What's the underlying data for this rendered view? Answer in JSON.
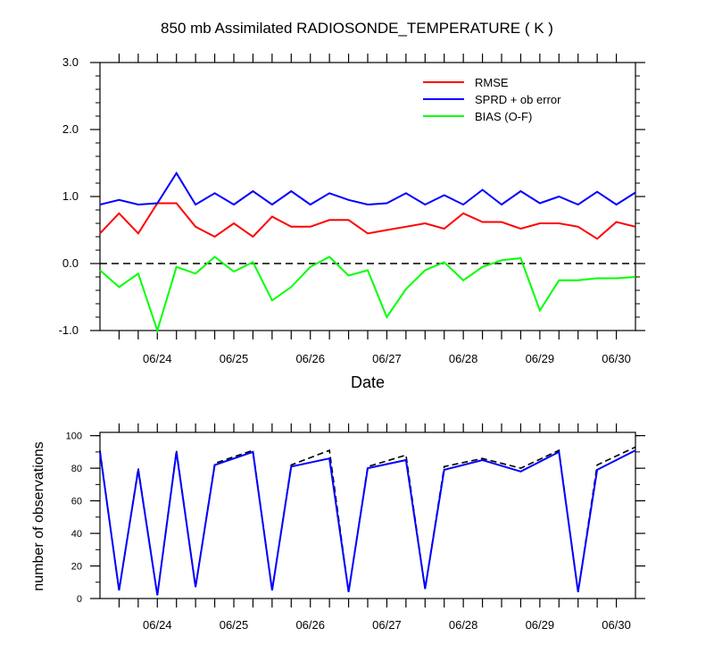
{
  "chart_data": [
    {
      "type": "line",
      "title": "850 mb Assimilated RADIOSONDE_TEMPERATURE ( K )",
      "xlabel": "Date",
      "ylabel": "",
      "xlim": [
        0,
        7
      ],
      "ylim": [
        -1.0,
        3.0
      ],
      "x_ticks": [
        0.75,
        1.75,
        2.75,
        3.75,
        4.75,
        5.75,
        6.75
      ],
      "x_tick_labels": [
        "06/24",
        "06/25",
        "06/26",
        "06/27",
        "06/28",
        "06/29",
        "06/30"
      ],
      "y_ticks": [
        -1.0,
        0.0,
        1.0,
        2.0,
        3.0
      ],
      "y_tick_labels": [
        "-1.0",
        "0.0",
        "1.0",
        "2.0",
        "3.0"
      ],
      "reference_line": {
        "y": 0.0,
        "style": "dashed"
      },
      "legend_position": "top-right",
      "series": [
        {
          "name": "RMSE",
          "color": "#ff0000",
          "points": [
            [
              0,
              0.45
            ],
            [
              0.25,
              0.75
            ],
            [
              0.5,
              0.45
            ],
            [
              0.75,
              0.9
            ],
            [
              1.0,
              0.9
            ],
            [
              1.25,
              0.55
            ],
            [
              1.5,
              0.4
            ],
            [
              1.75,
              0.6
            ],
            [
              2.0,
              0.4
            ],
            [
              2.25,
              0.7
            ],
            [
              2.5,
              0.55
            ],
            [
              2.75,
              0.55
            ],
            [
              3.0,
              0.65
            ],
            [
              3.25,
              0.65
            ],
            [
              3.5,
              0.45
            ],
            [
              3.75,
              0.5
            ],
            [
              4.0,
              0.55
            ],
            [
              4.25,
              0.6
            ],
            [
              4.5,
              0.52
            ],
            [
              4.75,
              0.75
            ],
            [
              5.0,
              0.62
            ],
            [
              5.25,
              0.62
            ],
            [
              5.5,
              0.52
            ],
            [
              5.75,
              0.6
            ],
            [
              6.0,
              0.6
            ],
            [
              6.25,
              0.55
            ],
            [
              6.5,
              0.37
            ],
            [
              6.75,
              0.62
            ],
            [
              7.0,
              0.55
            ]
          ]
        },
        {
          "name": "SPRD + ob error",
          "color": "#0000ff",
          "points": [
            [
              0,
              0.88
            ],
            [
              0.25,
              0.95
            ],
            [
              0.5,
              0.88
            ],
            [
              0.75,
              0.9
            ],
            [
              1.0,
              1.35
            ],
            [
              1.25,
              0.88
            ],
            [
              1.5,
              1.05
            ],
            [
              1.75,
              0.88
            ],
            [
              2.0,
              1.08
            ],
            [
              2.25,
              0.88
            ],
            [
              2.5,
              1.08
            ],
            [
              2.75,
              0.88
            ],
            [
              3.0,
              1.05
            ],
            [
              3.25,
              0.95
            ],
            [
              3.5,
              0.88
            ],
            [
              3.75,
              0.9
            ],
            [
              4.0,
              1.05
            ],
            [
              4.25,
              0.88
            ],
            [
              4.5,
              1.02
            ],
            [
              4.75,
              0.88
            ],
            [
              5.0,
              1.1
            ],
            [
              5.25,
              0.88
            ],
            [
              5.5,
              1.08
            ],
            [
              5.75,
              0.9
            ],
            [
              6.0,
              1.0
            ],
            [
              6.25,
              0.88
            ],
            [
              6.5,
              1.07
            ],
            [
              6.75,
              0.88
            ],
            [
              7.0,
              1.06
            ]
          ]
        },
        {
          "name": "BIAS (O-F)",
          "color": "#00ff00",
          "points": [
            [
              0,
              -0.1
            ],
            [
              0.25,
              -0.35
            ],
            [
              0.5,
              -0.15
            ],
            [
              0.75,
              -1.0
            ],
            [
              1.0,
              -0.05
            ],
            [
              1.25,
              -0.15
            ],
            [
              1.5,
              0.1
            ],
            [
              1.75,
              -0.12
            ],
            [
              2.0,
              0.02
            ],
            [
              2.25,
              -0.55
            ],
            [
              2.5,
              -0.35
            ],
            [
              2.75,
              -0.05
            ],
            [
              3.0,
              0.1
            ],
            [
              3.25,
              -0.18
            ],
            [
              3.5,
              -0.1
            ],
            [
              3.75,
              -0.8
            ],
            [
              4.0,
              -0.38
            ],
            [
              4.25,
              -0.1
            ],
            [
              4.5,
              0.02
            ],
            [
              4.75,
              -0.25
            ],
            [
              5.0,
              -0.05
            ],
            [
              5.25,
              0.05
            ],
            [
              5.5,
              0.08
            ],
            [
              5.75,
              -0.7
            ],
            [
              6.0,
              -0.25
            ],
            [
              6.25,
              -0.25
            ],
            [
              6.5,
              -0.22
            ],
            [
              6.75,
              -0.22
            ],
            [
              7.0,
              -0.2
            ]
          ]
        }
      ]
    },
    {
      "type": "line",
      "title": "",
      "xlabel": "",
      "ylabel": "number of observations",
      "xlim": [
        0,
        7
      ],
      "ylim": [
        0,
        102
      ],
      "x_ticks": [
        0.75,
        1.75,
        2.75,
        3.75,
        4.75,
        5.75,
        6.75
      ],
      "x_tick_labels": [
        "06/24",
        "06/25",
        "06/26",
        "06/27",
        "06/28",
        "06/29",
        "06/30"
      ],
      "y_ticks": [
        0,
        20,
        40,
        60,
        80,
        100
      ],
      "y_tick_labels": [
        "0",
        "20",
        "40",
        "60",
        "80",
        "100"
      ],
      "series": [
        {
          "color": "#000000",
          "style": "dashed",
          "points": [
            [
              0,
              91
            ],
            [
              0.25,
              5
            ],
            [
              0.5,
              80
            ],
            [
              0.75,
              2
            ],
            [
              1.0,
              91
            ],
            [
              1.25,
              7
            ],
            [
              1.5,
              83
            ],
            [
              2.0,
              91
            ],
            [
              2.25,
              5
            ],
            [
              2.5,
              82
            ],
            [
              3.0,
              91
            ],
            [
              3.25,
              4
            ],
            [
              3.5,
              81
            ],
            [
              4.0,
              88
            ],
            [
              4.25,
              6
            ],
            [
              4.5,
              81
            ],
            [
              5.0,
              86
            ],
            [
              5.5,
              80
            ],
            [
              6.0,
              91
            ],
            [
              6.25,
              4
            ],
            [
              6.5,
              82
            ],
            [
              7.0,
              93
            ]
          ]
        },
        {
          "color": "#0000ff",
          "style": "solid",
          "points": [
            [
              0,
              90
            ],
            [
              0.25,
              5
            ],
            [
              0.5,
              79
            ],
            [
              0.75,
              2
            ],
            [
              1.0,
              90
            ],
            [
              1.25,
              7
            ],
            [
              1.5,
              82
            ],
            [
              2.0,
              90
            ],
            [
              2.25,
              5
            ],
            [
              2.5,
              81
            ],
            [
              3.0,
              86
            ],
            [
              3.25,
              4
            ],
            [
              3.5,
              80
            ],
            [
              4.0,
              85
            ],
            [
              4.25,
              6
            ],
            [
              4.5,
              79
            ],
            [
              5.0,
              85
            ],
            [
              5.5,
              78
            ],
            [
              6.0,
              90
            ],
            [
              6.25,
              4
            ],
            [
              6.5,
              79
            ],
            [
              7.0,
              91
            ]
          ]
        }
      ]
    }
  ]
}
